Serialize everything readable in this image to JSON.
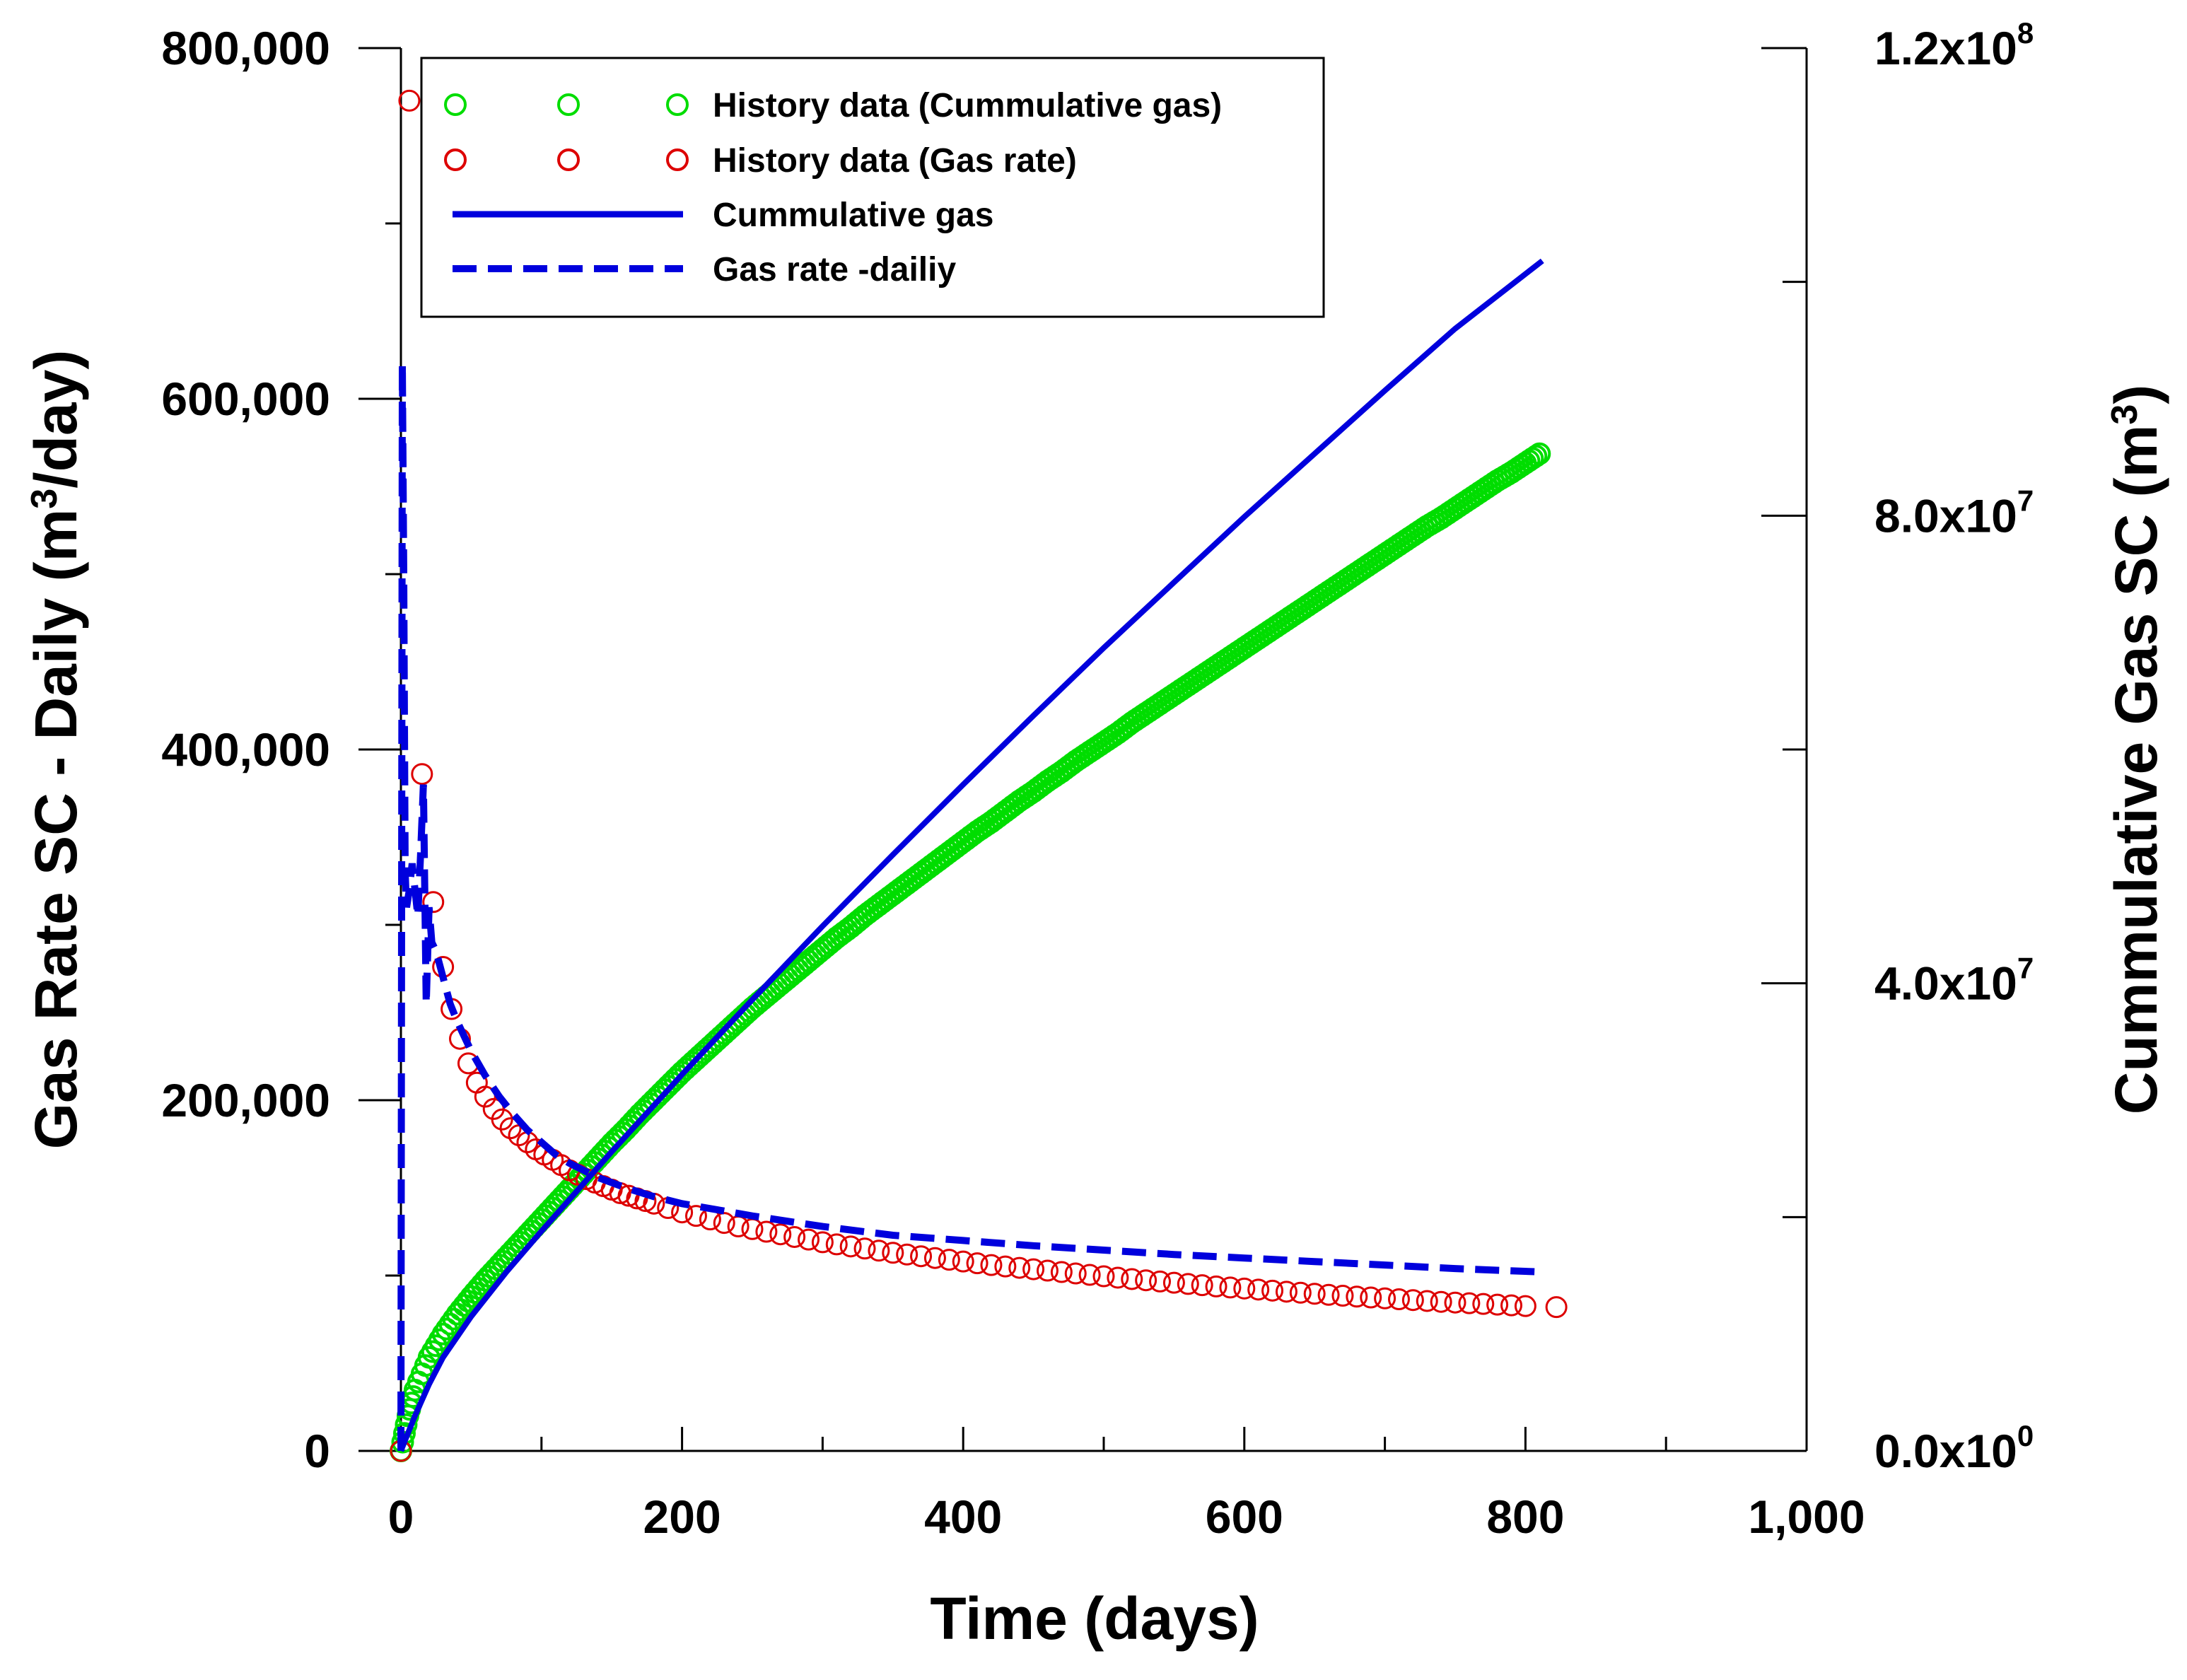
{
  "chart_data": {
    "type": "scatter",
    "x_axis": {
      "title": "Time (days)",
      "range": [
        0,
        1000
      ],
      "major_ticks": [
        0,
        200,
        400,
        600,
        800,
        1000
      ],
      "tick_labels": [
        "0",
        "200",
        "400",
        "600",
        "800",
        "1,000"
      ]
    },
    "y_axis_left": {
      "title_main": "Gas Rate SC - Daily (m",
      "title_sup": "3",
      "title_end": "/day)",
      "range": [
        0,
        800000
      ],
      "major_ticks": [
        0,
        200000,
        400000,
        600000,
        800000
      ],
      "tick_labels": [
        "0",
        "200,000",
        "400,000",
        "600,000",
        "800,000"
      ]
    },
    "y_axis_right": {
      "title_main": "Cummulative Gas SC (m",
      "title_sup": "3",
      "title_end": ")",
      "range": [
        0,
        120000000
      ],
      "major_ticks": [
        0,
        40000000,
        80000000,
        120000000
      ],
      "tick_labels": [
        {
          "mantissa": "0.0x10",
          "exp": "0"
        },
        {
          "mantissa": "4.0x10",
          "exp": "7"
        },
        {
          "mantissa": "8.0x10",
          "exp": "7"
        },
        {
          "mantissa": "1.2x10",
          "exp": "8"
        }
      ]
    },
    "legend": {
      "position": "top-left",
      "entries": [
        {
          "label": "History data (Cummulative gas)",
          "style": "green-circles"
        },
        {
          "label": "History data (Gas rate)",
          "style": "red-circles"
        },
        {
          "label": "Cummulative gas",
          "style": "blue-solid"
        },
        {
          "label": "Gas rate -dailiy",
          "style": "blue-dashed"
        }
      ]
    },
    "series": [
      {
        "name": "History data (Cummulative gas)",
        "axis": "right",
        "marker": "circle",
        "color": "#00dd00",
        "x": [
          0,
          5,
          10,
          20,
          30,
          40,
          50,
          60,
          70,
          80,
          90,
          100,
          110,
          120,
          130,
          140,
          150,
          160,
          170,
          180,
          190,
          200,
          210,
          220,
          230,
          240,
          250,
          260,
          270,
          280,
          290,
          300,
          310,
          320,
          330,
          340,
          350,
          360,
          370,
          380,
          390,
          400,
          410,
          420,
          430,
          440,
          450,
          460,
          470,
          480,
          490,
          500,
          510,
          520,
          530,
          540,
          550,
          560,
          570,
          580,
          590,
          600,
          610,
          620,
          630,
          640,
          650,
          660,
          670,
          680,
          690,
          700,
          710,
          720,
          730,
          740,
          750,
          760,
          770,
          780,
          790,
          800,
          810
        ],
        "y": [
          0,
          3000000,
          5200000,
          8000000,
          10000000,
          11700000,
          13200000,
          14600000,
          15900000,
          17200000,
          18500000,
          19800000,
          21100000,
          22400000,
          23700000,
          25000000,
          26300000,
          27500000,
          28800000,
          30000000,
          31200000,
          32400000,
          33500000,
          34600000,
          35700000,
          36800000,
          37900000,
          38900000,
          39900000,
          40900000,
          41900000,
          42900000,
          43900000,
          44800000,
          45800000,
          46700000,
          47600000,
          48500000,
          49400000,
          50300000,
          51200000,
          52100000,
          53000000,
          53800000,
          54700000,
          55600000,
          56400000,
          57300000,
          58100000,
          59000000,
          59800000,
          60600000,
          61400000,
          62300000,
          63100000,
          63900000,
          64700000,
          65500000,
          66300000,
          67100000,
          67900000,
          68700000,
          69500000,
          70300000,
          71100000,
          71900000,
          72700000,
          73500000,
          74300000,
          75100000,
          75900000,
          76700000,
          77500000,
          78300000,
          79100000,
          79800000,
          80600000,
          81400000,
          82200000,
          83000000,
          83700000,
          84500000,
          85300000
        ]
      },
      {
        "name": "History data (Gas rate)",
        "axis": "left",
        "marker": "circle",
        "color": "#dd0000",
        "x": [
          0,
          6,
          15,
          23,
          30,
          36,
          42,
          48,
          54,
          60,
          66,
          72,
          78,
          84,
          90,
          96,
          102,
          108,
          114,
          120,
          126,
          132,
          138,
          144,
          150,
          156,
          162,
          168,
          174,
          180,
          190,
          200,
          210,
          220,
          230,
          240,
          250,
          260,
          270,
          280,
          290,
          300,
          310,
          320,
          330,
          340,
          350,
          360,
          370,
          380,
          390,
          400,
          410,
          420,
          430,
          440,
          450,
          460,
          470,
          480,
          490,
          500,
          510,
          520,
          530,
          540,
          550,
          560,
          570,
          580,
          590,
          600,
          610,
          620,
          630,
          640,
          650,
          660,
          670,
          680,
          690,
          700,
          710,
          720,
          730,
          740,
          750,
          760,
          770,
          780,
          790,
          800,
          822
        ],
        "y": [
          0,
          770000,
          386000,
          313000,
          276000,
          252000,
          235000,
          221000,
          210000,
          202000,
          195000,
          189000,
          184000,
          180000,
          176000,
          172000,
          169000,
          166000,
          163000,
          160000,
          157500,
          155000,
          153000,
          151000,
          149000,
          147000,
          145500,
          144000,
          142500,
          141000,
          138500,
          136000,
          134000,
          132000,
          130000,
          128000,
          126500,
          125000,
          123500,
          122000,
          120500,
          119000,
          117800,
          116600,
          115400,
          114200,
          113000,
          112000,
          111000,
          110000,
          109000,
          108000,
          107000,
          106000,
          105200,
          104400,
          103600,
          102800,
          102000,
          101200,
          100400,
          99600,
          98800,
          98000,
          97300,
          96600,
          95900,
          95200,
          94500,
          93800,
          93200,
          92600,
          92000,
          91400,
          90800,
          90200,
          89600,
          89000,
          88500,
          88000,
          87500,
          87000,
          86500,
          86000,
          85500,
          85000,
          84600,
          84200,
          83800,
          83400,
          83000,
          82600,
          82000
        ]
      },
      {
        "name": "Cummulative gas",
        "axis": "right",
        "line": "solid",
        "color": "#0000dd",
        "x": [
          0,
          5,
          10,
          20,
          30,
          50,
          75,
          100,
          125,
          150,
          175,
          200,
          250,
          300,
          350,
          400,
          450,
          500,
          550,
          600,
          650,
          700,
          750,
          812
        ],
        "y": [
          0,
          1500000,
          3000000,
          5700000,
          8000000,
          11500000,
          15300000,
          18800000,
          22200000,
          25600000,
          28900000,
          32200000,
          38600000,
          44900000,
          51000000,
          57000000,
          62900000,
          68700000,
          74300000,
          79900000,
          85300000,
          90700000,
          96000000,
          101800000
        ]
      },
      {
        "name": "Gas rate -dailiy",
        "axis": "left",
        "line": "dashed",
        "color": "#0000dd",
        "x": [
          0,
          1,
          2,
          3,
          4,
          6,
          8,
          10,
          12,
          14,
          16,
          18,
          20,
          22,
          25,
          30,
          35,
          40,
          50,
          60,
          70,
          80,
          90,
          100,
          110,
          120,
          140,
          160,
          180,
          200,
          250,
          300,
          350,
          400,
          450,
          500,
          550,
          600,
          650,
          700,
          750,
          812
        ],
        "y": [
          0,
          620000,
          500000,
          330000,
          310000,
          320000,
          335000,
          320000,
          305000,
          340000,
          380000,
          255000,
          310000,
          290000,
          285000,
          270000,
          255000,
          245000,
          228000,
          214000,
          202000,
          192000,
          183000,
          176000,
          169000,
          164000,
          156000,
          150000,
          145000,
          141000,
          134000,
          128000,
          123000,
          120000,
          117000,
          114500,
          112000,
          110000,
          108000,
          106000,
          104000,
          102000
        ]
      }
    ]
  }
}
